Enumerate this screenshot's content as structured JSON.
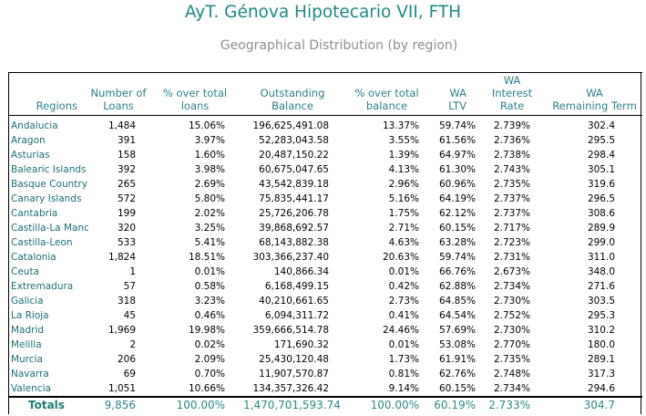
{
  "title": "AyT. Génova Hipotecario VII, FTH",
  "subtitle": "Geographical Distribution (by region)",
  "headers": [
    "Regions",
    "Number of\nLoans",
    "% over total\nloans",
    "Outstanding\nBalance",
    "% over total\nbalance",
    "WA\nLTV",
    "WA\nInterest Rate",
    "WA\nRemaining Term"
  ],
  "rows": [
    [
      "Andalucia",
      "1,484",
      "15.06%",
      "196,625,491.08",
      "13.37%",
      "59.74%",
      "2.739%",
      "302.4"
    ],
    [
      "Aragon",
      "391",
      "3.97%",
      "52,283,043.58",
      "3.55%",
      "61.56%",
      "2.736%",
      "295.5"
    ],
    [
      "Asturias",
      "158",
      "1.60%",
      "20,487,150.22",
      "1.39%",
      "64.97%",
      "2.738%",
      "298.4"
    ],
    [
      "Balearic Islands",
      "392",
      "3.98%",
      "60,675,047.65",
      "4.13%",
      "61.30%",
      "2.743%",
      "305.1"
    ],
    [
      "Basque Country",
      "265",
      "2.69%",
      "43,542,839.18",
      "2.96%",
      "60.96%",
      "2.735%",
      "319.6"
    ],
    [
      "Canary Islands",
      "572",
      "5.80%",
      "75,835,441.17",
      "5.16%",
      "64.19%",
      "2.737%",
      "296.5"
    ],
    [
      "Cantabria",
      "199",
      "2.02%",
      "25,726,206.78",
      "1.75%",
      "62.12%",
      "2.737%",
      "308.6"
    ],
    [
      "Castilla-La Manch",
      "320",
      "3.25%",
      "39,868,692.57",
      "2.71%",
      "60.15%",
      "2.717%",
      "289.9"
    ],
    [
      "Castilla-Leon",
      "533",
      "5.41%",
      "68,143,882.38",
      "4.63%",
      "63.28%",
      "2.723%",
      "299.0"
    ],
    [
      "Catalonia",
      "1,824",
      "18.51%",
      "303,366,237.40",
      "20.63%",
      "59.74%",
      "2.731%",
      "311.0"
    ],
    [
      "Ceuta",
      "1",
      "0.01%",
      "140,866.34",
      "0.01%",
      "66.76%",
      "2.673%",
      "348.0"
    ],
    [
      "Extremadura",
      "57",
      "0.58%",
      "6,168,499.15",
      "0.42%",
      "62.88%",
      "2.734%",
      "271.6"
    ],
    [
      "Galicia",
      "318",
      "3.23%",
      "40,210,661.65",
      "2.73%",
      "64.85%",
      "2.730%",
      "303.5"
    ],
    [
      "La Rioja",
      "45",
      "0.46%",
      "6,094,311.72",
      "0.41%",
      "64.54%",
      "2.752%",
      "295.3"
    ],
    [
      "Madrid",
      "1,969",
      "19.98%",
      "359,666,514.78",
      "24.46%",
      "57.69%",
      "2.730%",
      "310.2"
    ],
    [
      "Melilla",
      "2",
      "0.02%",
      "171,690.32",
      "0.01%",
      "53.08%",
      "2.770%",
      "180.0"
    ],
    [
      "Murcia",
      "206",
      "2.09%",
      "25,430,120.48",
      "1.73%",
      "61.91%",
      "2.735%",
      "289.1"
    ],
    [
      "Navarra",
      "69",
      "0.70%",
      "11,907,570.87",
      "0.81%",
      "62.76%",
      "2.748%",
      "317.3"
    ],
    [
      "Valencia",
      "1,051",
      "10.66%",
      "134,357,326.42",
      "9.14%",
      "60.15%",
      "2.734%",
      "294.6"
    ]
  ],
  "totals": [
    "Totals",
    "9,856",
    "100.00%",
    "1,470,701,593.74",
    "100.00%",
    "60.19%",
    "2.733%",
    "304.7"
  ],
  "colors": {
    "title": "#1a8a84",
    "header_text": "#2a7f8a",
    "region_text": "#1a6f78",
    "totals_text": "#2a8a84"
  }
}
